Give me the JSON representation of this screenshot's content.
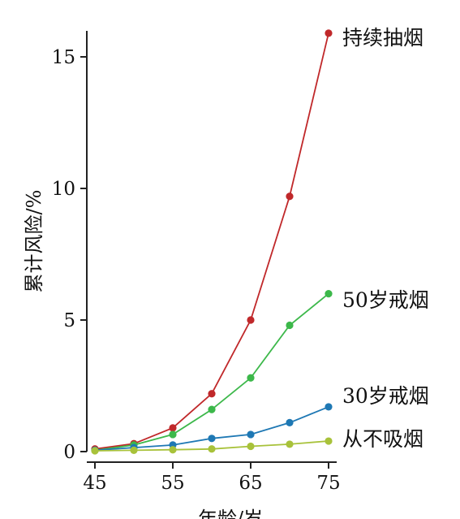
{
  "chart_data": {
    "type": "line",
    "title": "",
    "xlabel": "年龄/岁",
    "ylabel": "累计风险/%",
    "x": [
      45,
      50,
      55,
      60,
      65,
      70,
      75
    ],
    "xticks": [
      "45",
      "55",
      "65",
      "75"
    ],
    "yticks": [
      "0",
      "5",
      "10",
      "15"
    ],
    "xlim": [
      45,
      75
    ],
    "ylim": [
      0,
      16
    ],
    "grid": false,
    "legend": "labels at line ends, right",
    "series": [
      {
        "name": "持续抽烟",
        "color": "#c0282a",
        "values": [
          0.1,
          0.3,
          0.9,
          2.2,
          5.0,
          9.7,
          15.9
        ]
      },
      {
        "name": "50岁戒烟",
        "color": "#3cb84a",
        "values": [
          0.05,
          0.25,
          0.65,
          1.6,
          2.8,
          4.8,
          6.0
        ]
      },
      {
        "name": "30岁戒烟",
        "color": "#1e78b4",
        "values": [
          0.05,
          0.15,
          0.25,
          0.5,
          0.65,
          1.1,
          1.7
        ]
      },
      {
        "name": "从不吸烟",
        "color": "#a8c23a",
        "values": [
          0.03,
          0.05,
          0.07,
          0.1,
          0.2,
          0.28,
          0.4
        ]
      }
    ]
  }
}
